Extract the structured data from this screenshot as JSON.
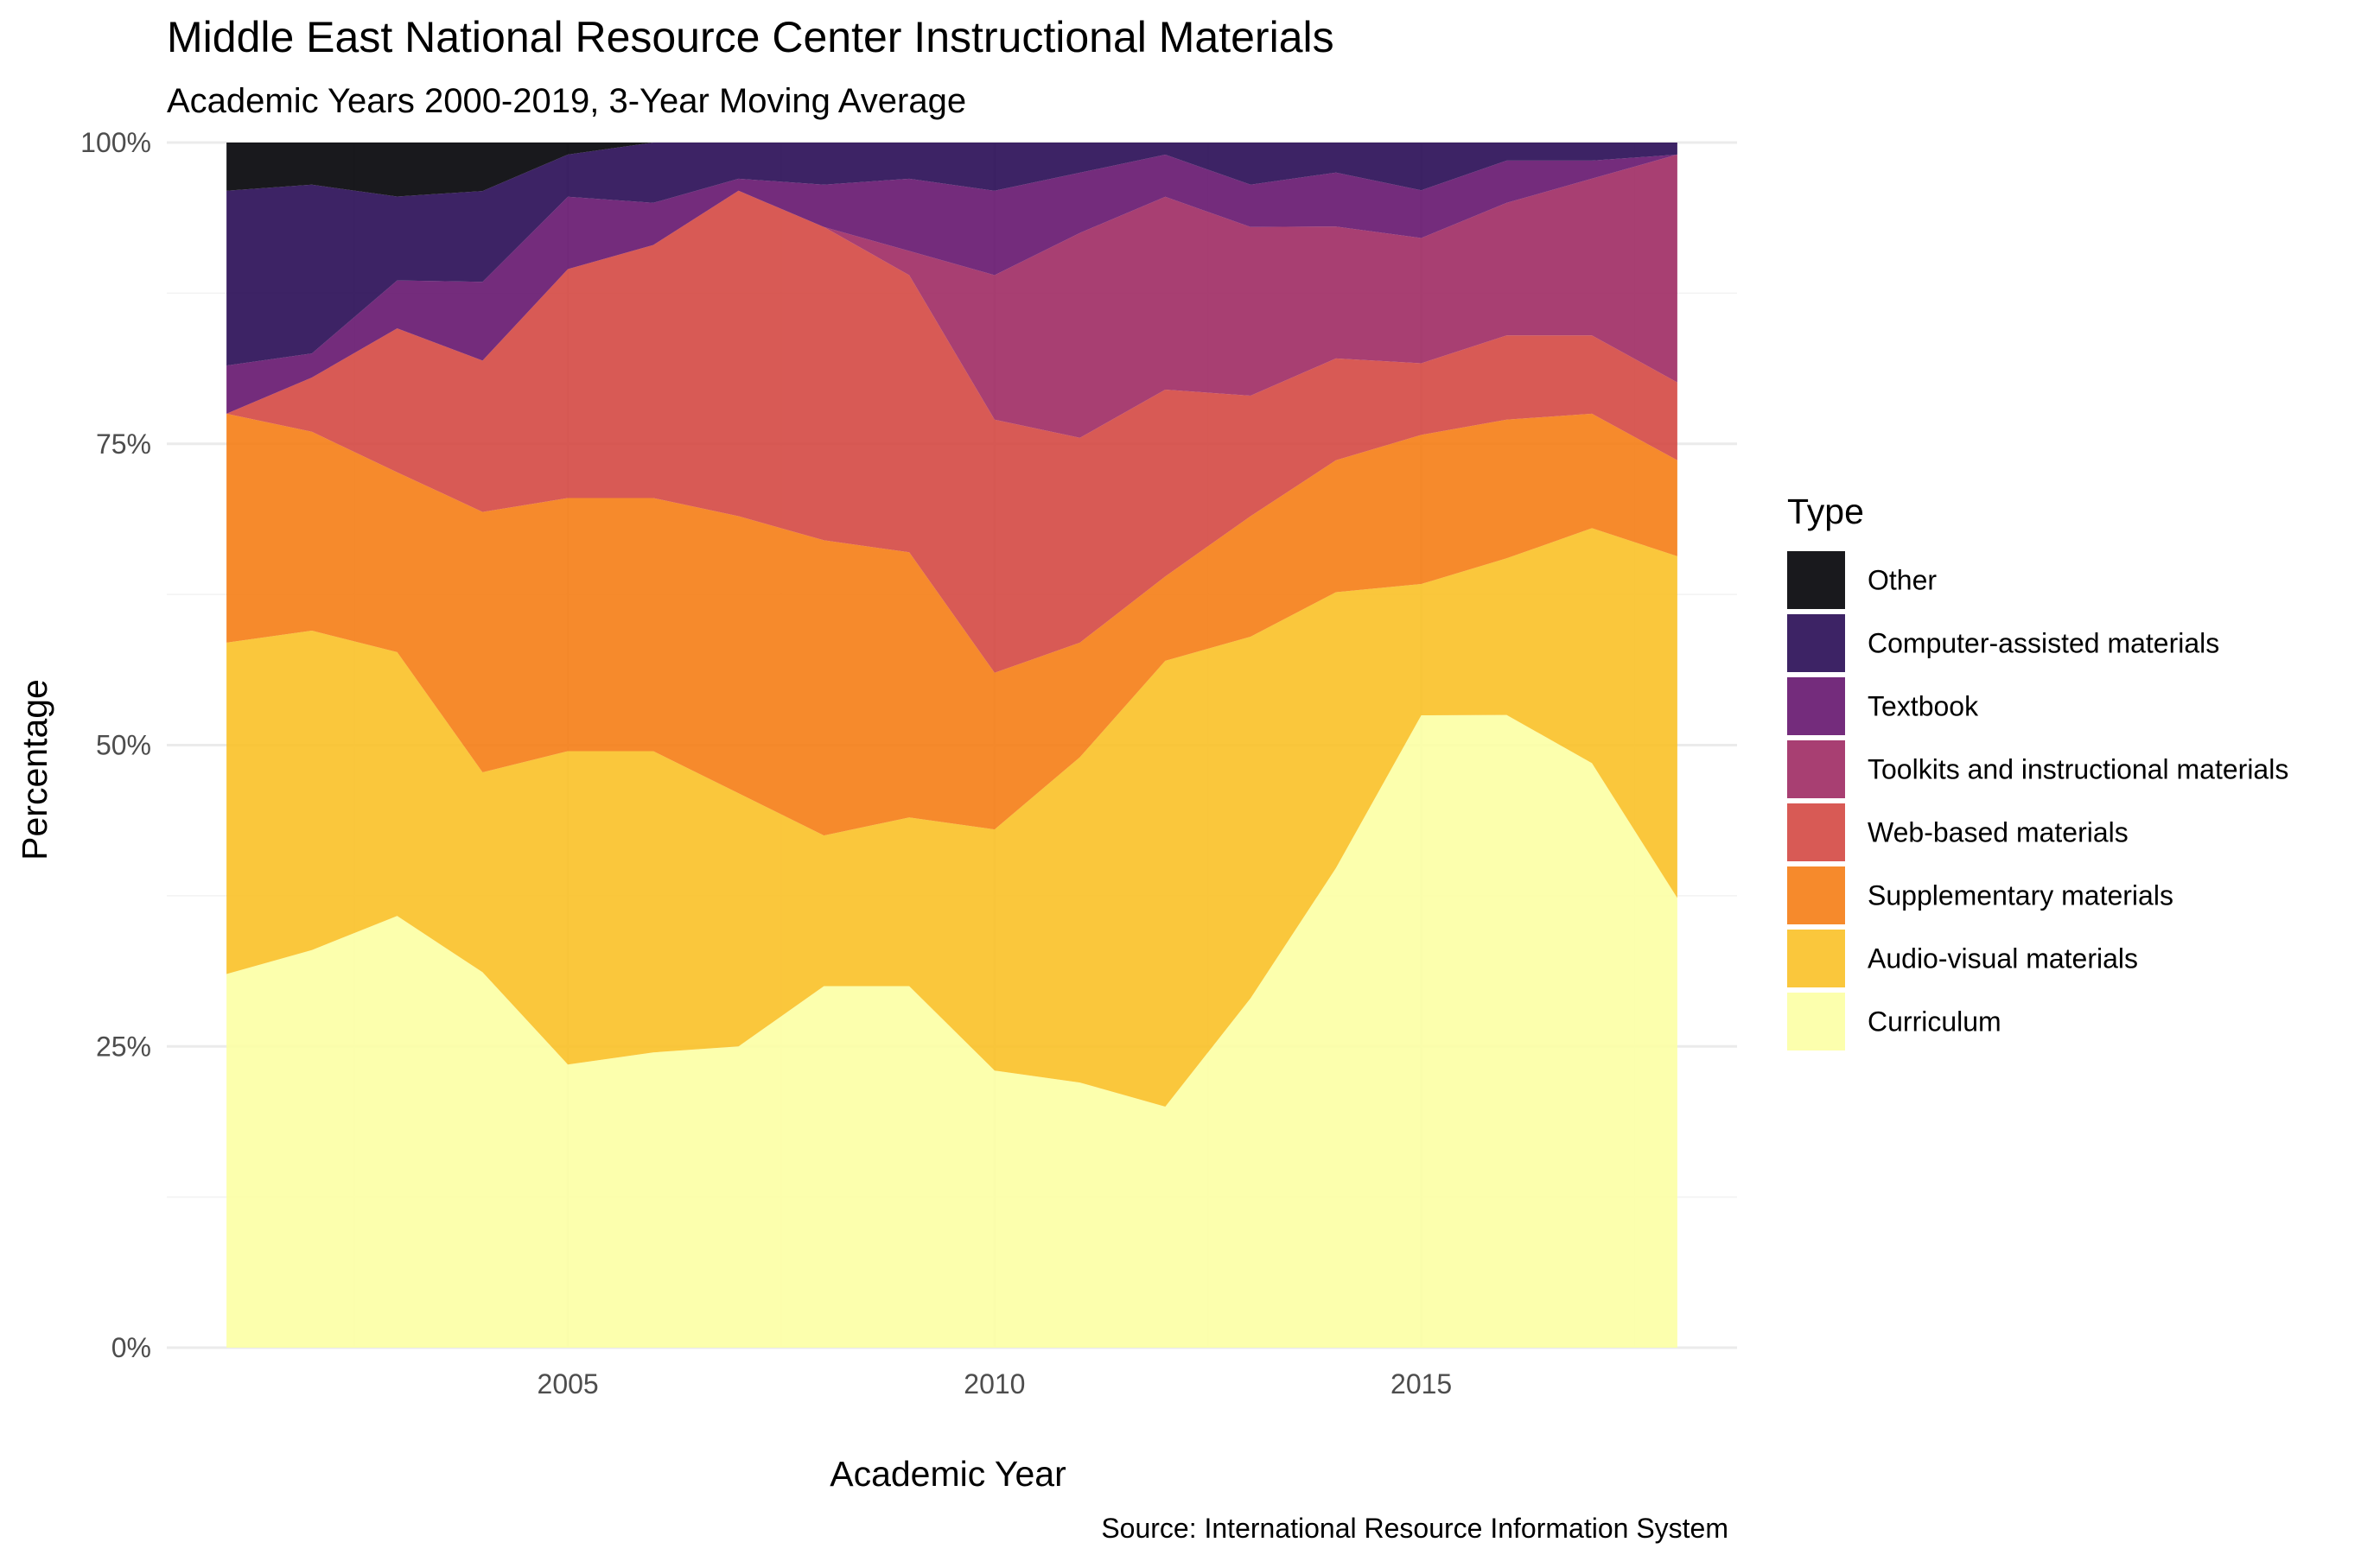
{
  "chart_data": {
    "type": "area",
    "stacked": "percent",
    "title": "Middle East National Resource Center Instructional Materials",
    "subtitle": "Academic Years 2000-2019, 3-Year Moving Average",
    "xlabel": "Academic Year",
    "ylabel": "Percentage",
    "caption": "Source: International Resource Information System",
    "legend_title": "Type",
    "legend_position": "right",
    "grid": true,
    "xlim": [
      2000.3,
      2018.7
    ],
    "ylim": [
      0,
      1
    ],
    "x_ticks": [
      2005,
      2010,
      2015
    ],
    "y_ticks": [
      {
        "value": 0,
        "label": "0%"
      },
      {
        "value": 0.25,
        "label": "25%"
      },
      {
        "value": 0.5,
        "label": "50%"
      },
      {
        "value": 0.75,
        "label": "75%"
      },
      {
        "value": 1,
        "label": "100%"
      }
    ],
    "x": [
      2001,
      2002,
      2003,
      2004,
      2005,
      2006,
      2007,
      2008,
      2009,
      2010,
      2011,
      2012,
      2013,
      2014,
      2015,
      2016,
      2017,
      2018
    ],
    "series": [
      {
        "name": "Curriculum",
        "color": "#fcffa4",
        "values": [
          0.31,
          0.33,
          0.36,
          0.31,
          0.235,
          0.245,
          0.25,
          0.3,
          0.3,
          0.23,
          0.22,
          0.2,
          0.29,
          0.4,
          0.53,
          0.525,
          0.485,
          0.375
        ]
      },
      {
        "name": "Audio-visual materials",
        "color": "#fac127",
        "values": [
          0.275,
          0.265,
          0.22,
          0.165,
          0.26,
          0.25,
          0.21,
          0.125,
          0.14,
          0.2,
          0.27,
          0.37,
          0.3,
          0.23,
          0.11,
          0.13,
          0.195,
          0.285
        ]
      },
      {
        "name": "Supplementary materials",
        "color": "#f57d15",
        "values": [
          0.19,
          0.165,
          0.15,
          0.215,
          0.21,
          0.21,
          0.23,
          0.245,
          0.22,
          0.13,
          0.095,
          0.07,
          0.1,
          0.11,
          0.125,
          0.115,
          0.095,
          0.08
        ]
      },
      {
        "name": "Web-based materials",
        "color": "#d44842",
        "values": [
          0.0,
          0.045,
          0.12,
          0.125,
          0.19,
          0.21,
          0.27,
          0.26,
          0.23,
          0.21,
          0.17,
          0.155,
          0.1,
          0.085,
          0.06,
          0.07,
          0.065,
          0.065
        ]
      },
      {
        "name": "Toolkits and instructional materials",
        "color": "#9f2a63",
        "values": [
          0.0,
          0.0,
          0.0,
          0.0,
          0.0,
          0.0,
          0.0,
          0.0,
          0.02,
          0.12,
          0.17,
          0.16,
          0.14,
          0.11,
          0.105,
          0.11,
          0.13,
          0.19
        ]
      },
      {
        "name": "Textbook",
        "color": "#65156e",
        "values": [
          0.04,
          0.02,
          0.04,
          0.065,
          0.06,
          0.035,
          0.01,
          0.035,
          0.06,
          0.07,
          0.05,
          0.035,
          0.035,
          0.045,
          0.04,
          0.035,
          0.015,
          0.0
        ]
      },
      {
        "name": "Computer-assisted materials",
        "color": "#280b54",
        "values": [
          0.145,
          0.14,
          0.07,
          0.075,
          0.035,
          0.05,
          0.03,
          0.035,
          0.03,
          0.04,
          0.025,
          0.01,
          0.035,
          0.025,
          0.04,
          0.015,
          0.015,
          0.01
        ]
      },
      {
        "name": "Other",
        "color": "#000004",
        "values": [
          0.04,
          0.035,
          0.045,
          0.04,
          0.01,
          0.0,
          0.0,
          0.0,
          0.0,
          0.0,
          0.0,
          0.0,
          0.0,
          0.0,
          0.0,
          0.0,
          0.0,
          0.0
        ]
      }
    ]
  }
}
